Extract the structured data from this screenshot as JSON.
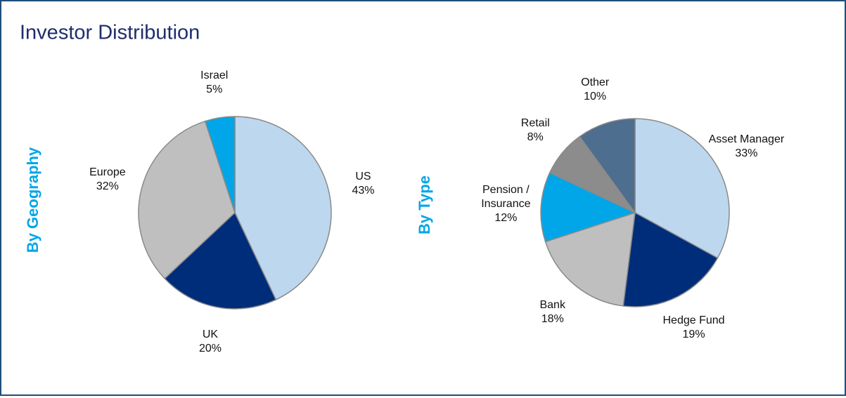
{
  "title": "Investor Distribution",
  "chart_data": [
    {
      "type": "pie",
      "title": "By Geography",
      "categories": [
        "US",
        "UK",
        "Europe",
        "Israel"
      ],
      "values": [
        43,
        20,
        32,
        5
      ],
      "value_labels": [
        "43%",
        "20%",
        "32%",
        "5%"
      ],
      "colors": [
        "#bdd7ee",
        "#002d7a",
        "#bfbfbf",
        "#00a6e8"
      ]
    },
    {
      "type": "pie",
      "title": "By Type",
      "categories": [
        "Asset Manager",
        "Hedge Fund",
        "Bank",
        "Pension / Insurance",
        "Retail",
        "Other"
      ],
      "values": [
        33,
        19,
        18,
        12,
        8,
        10
      ],
      "value_labels": [
        "33%",
        "19%",
        "18%",
        "12%",
        "8%",
        "10%"
      ],
      "colors": [
        "#bdd7ee",
        "#002d7a",
        "#bfbfbf",
        "#00a6e8",
        "#8c8c8c",
        "#4d6e8e"
      ]
    }
  ]
}
